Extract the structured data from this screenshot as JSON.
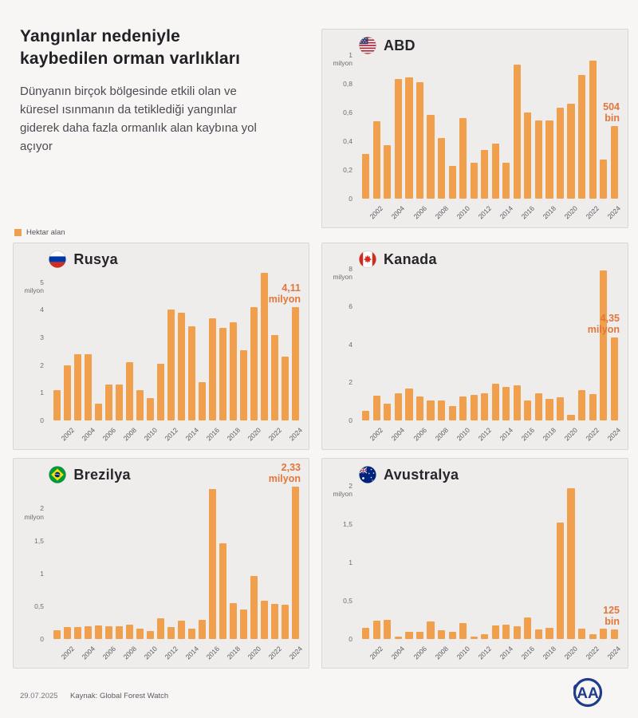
{
  "page": {
    "title_line1": "Yangınlar nedeniyle",
    "title_line2": "kaybedilen orman varlıkları",
    "subtitle": "Dünyanın birçok bölgesinde etkili olan ve küresel ısınmanın da tetiklediği yangınlar giderek daha fazla ormanlık alan kaybına yol açıyor",
    "legend_label": "Hektar alan",
    "footer_date": "29.07.2025",
    "footer_source": "Kaynak: Global Forest Watch",
    "logo_text": "AA"
  },
  "colors": {
    "bar": "#f0a04c",
    "annotation": "#e2763b",
    "panel_bg": "#eeedeb",
    "page_bg": "#f7f6f4",
    "logo_blue": "#1e3c8c"
  },
  "chart_data": [
    {
      "type": "bar",
      "country": "ABD",
      "flag": "usa",
      "unit": "hektar alan (milyon)",
      "x": [
        2001,
        2002,
        2003,
        2004,
        2005,
        2006,
        2007,
        2008,
        2009,
        2010,
        2011,
        2012,
        2013,
        2014,
        2015,
        2016,
        2017,
        2018,
        2019,
        2020,
        2021,
        2022,
        2023,
        2024
      ],
      "values": [
        0.31,
        0.54,
        0.37,
        0.83,
        0.845,
        0.81,
        0.58,
        0.42,
        0.23,
        0.56,
        0.25,
        0.34,
        0.38,
        0.25,
        0.93,
        0.6,
        0.545,
        0.545,
        0.63,
        0.66,
        0.86,
        0.96,
        0.27,
        0.504
      ],
      "ylim": [
        0,
        1
      ],
      "scale_max": 1.02,
      "yticks": [
        {
          "v": 1,
          "label": "1",
          "sub": "milyon"
        },
        {
          "v": 0.8,
          "label": "0,8"
        },
        {
          "v": 0.6,
          "label": "0,6"
        },
        {
          "v": 0.4,
          "label": "0,4"
        },
        {
          "v": 0.2,
          "label": "0,2"
        },
        {
          "v": 0,
          "label": "0"
        }
      ],
      "xticks": [
        2002,
        2004,
        2006,
        2008,
        2010,
        2012,
        2014,
        2016,
        2018,
        2020,
        2022,
        2024
      ],
      "annotation_lines": [
        "504",
        "bin"
      ]
    },
    {
      "type": "bar",
      "country": "Rusya",
      "flag": "russia",
      "unit": "hektar alan (milyon)",
      "x": [
        2001,
        2002,
        2003,
        2004,
        2005,
        2006,
        2007,
        2008,
        2009,
        2010,
        2011,
        2012,
        2013,
        2014,
        2015,
        2016,
        2017,
        2018,
        2019,
        2020,
        2021,
        2022,
        2023,
        2024
      ],
      "values": [
        1.1,
        2.0,
        2.4,
        2.4,
        0.6,
        1.3,
        1.3,
        2.1,
        1.1,
        0.8,
        2.05,
        4.0,
        3.9,
        3.4,
        1.4,
        3.7,
        3.35,
        3.55,
        2.55,
        4.1,
        5.35,
        3.1,
        2.3,
        4.11
      ],
      "ylim": [
        0,
        5
      ],
      "scale_max": 5.6,
      "yticks": [
        {
          "v": 5,
          "label": "5",
          "sub": "milyon"
        },
        {
          "v": 4,
          "label": "4"
        },
        {
          "v": 3,
          "label": "3"
        },
        {
          "v": 2,
          "label": "2"
        },
        {
          "v": 1,
          "label": "1"
        },
        {
          "v": 0,
          "label": "0"
        }
      ],
      "xticks": [
        2002,
        2004,
        2006,
        2008,
        2010,
        2012,
        2014,
        2016,
        2018,
        2020,
        2022,
        2024
      ],
      "annotation_lines": [
        "4,11",
        "milyon"
      ]
    },
    {
      "type": "bar",
      "country": "Kanada",
      "flag": "canada",
      "unit": "hektar alan (milyon)",
      "x": [
        2001,
        2002,
        2003,
        2004,
        2005,
        2006,
        2007,
        2008,
        2009,
        2010,
        2011,
        2012,
        2013,
        2014,
        2015,
        2016,
        2017,
        2018,
        2019,
        2020,
        2021,
        2022,
        2023,
        2024
      ],
      "values": [
        0.5,
        1.3,
        0.9,
        1.45,
        1.7,
        1.25,
        1.05,
        1.05,
        0.75,
        1.25,
        1.35,
        1.45,
        1.95,
        1.75,
        1.85,
        1.05,
        1.45,
        1.15,
        1.2,
        0.3,
        1.6,
        1.4,
        7.9,
        4.35
      ],
      "ylim": [
        0,
        8
      ],
      "scale_max": 8.15,
      "yticks": [
        {
          "v": 8,
          "label": "8",
          "sub": "milyon"
        },
        {
          "v": 6,
          "label": "6"
        },
        {
          "v": 4,
          "label": "4"
        },
        {
          "v": 2,
          "label": "2"
        },
        {
          "v": 0,
          "label": "0"
        }
      ],
      "xticks": [
        2002,
        2004,
        2006,
        2008,
        2010,
        2012,
        2014,
        2016,
        2018,
        2020,
        2022,
        2024
      ],
      "annotation_lines": [
        "4,35",
        "milyon"
      ]
    },
    {
      "type": "bar",
      "country": "Brezilya",
      "flag": "brazil",
      "unit": "hektar alan (milyon)",
      "x": [
        2001,
        2002,
        2003,
        2004,
        2005,
        2006,
        2007,
        2008,
        2009,
        2010,
        2011,
        2012,
        2013,
        2014,
        2015,
        2016,
        2017,
        2018,
        2019,
        2020,
        2021,
        2022,
        2023,
        2024
      ],
      "values": [
        0.13,
        0.18,
        0.18,
        0.2,
        0.21,
        0.19,
        0.2,
        0.22,
        0.16,
        0.12,
        0.32,
        0.18,
        0.28,
        0.16,
        0.29,
        2.3,
        1.47,
        0.55,
        0.45,
        0.97,
        0.59,
        0.54,
        0.52,
        2.33
      ],
      "ylim": [
        0,
        2
      ],
      "scale_max": 2.42,
      "yticks": [
        {
          "v": 2,
          "label": "2",
          "sub": "milyon"
        },
        {
          "v": 1.5,
          "label": "1,5"
        },
        {
          "v": 1,
          "label": "1"
        },
        {
          "v": 0.5,
          "label": "0,5"
        },
        {
          "v": 0,
          "label": "0"
        }
      ],
      "xticks": [
        2002,
        2004,
        2006,
        2008,
        2010,
        2012,
        2014,
        2016,
        2018,
        2020,
        2022,
        2024
      ],
      "annotation_lines": [
        "2,33",
        "milyon"
      ]
    },
    {
      "type": "bar",
      "country": "Avustralya",
      "flag": "australia",
      "unit": "hektar alan (milyon)",
      "x": [
        2001,
        2002,
        2003,
        2004,
        2005,
        2006,
        2007,
        2008,
        2009,
        2010,
        2011,
        2012,
        2013,
        2014,
        2015,
        2016,
        2017,
        2018,
        2019,
        2020,
        2021,
        2022,
        2023,
        2024
      ],
      "values": [
        0.15,
        0.24,
        0.25,
        0.03,
        0.09,
        0.09,
        0.23,
        0.11,
        0.09,
        0.21,
        0.03,
        0.06,
        0.18,
        0.19,
        0.17,
        0.28,
        0.12,
        0.15,
        1.52,
        1.97,
        0.14,
        0.06,
        0.14,
        0.125
      ],
      "ylim": [
        0,
        2
      ],
      "scale_max": 2.06,
      "yticks": [
        {
          "v": 2,
          "label": "2",
          "sub": "milyon"
        },
        {
          "v": 1.5,
          "label": "1,5"
        },
        {
          "v": 1,
          "label": "1"
        },
        {
          "v": 0.5,
          "label": "0,5"
        },
        {
          "v": 0,
          "label": "0"
        }
      ],
      "xticks": [
        2002,
        2004,
        2006,
        2008,
        2010,
        2012,
        2014,
        2016,
        2018,
        2020,
        2022,
        2024
      ],
      "annotation_lines": [
        "125",
        "bin"
      ]
    }
  ]
}
